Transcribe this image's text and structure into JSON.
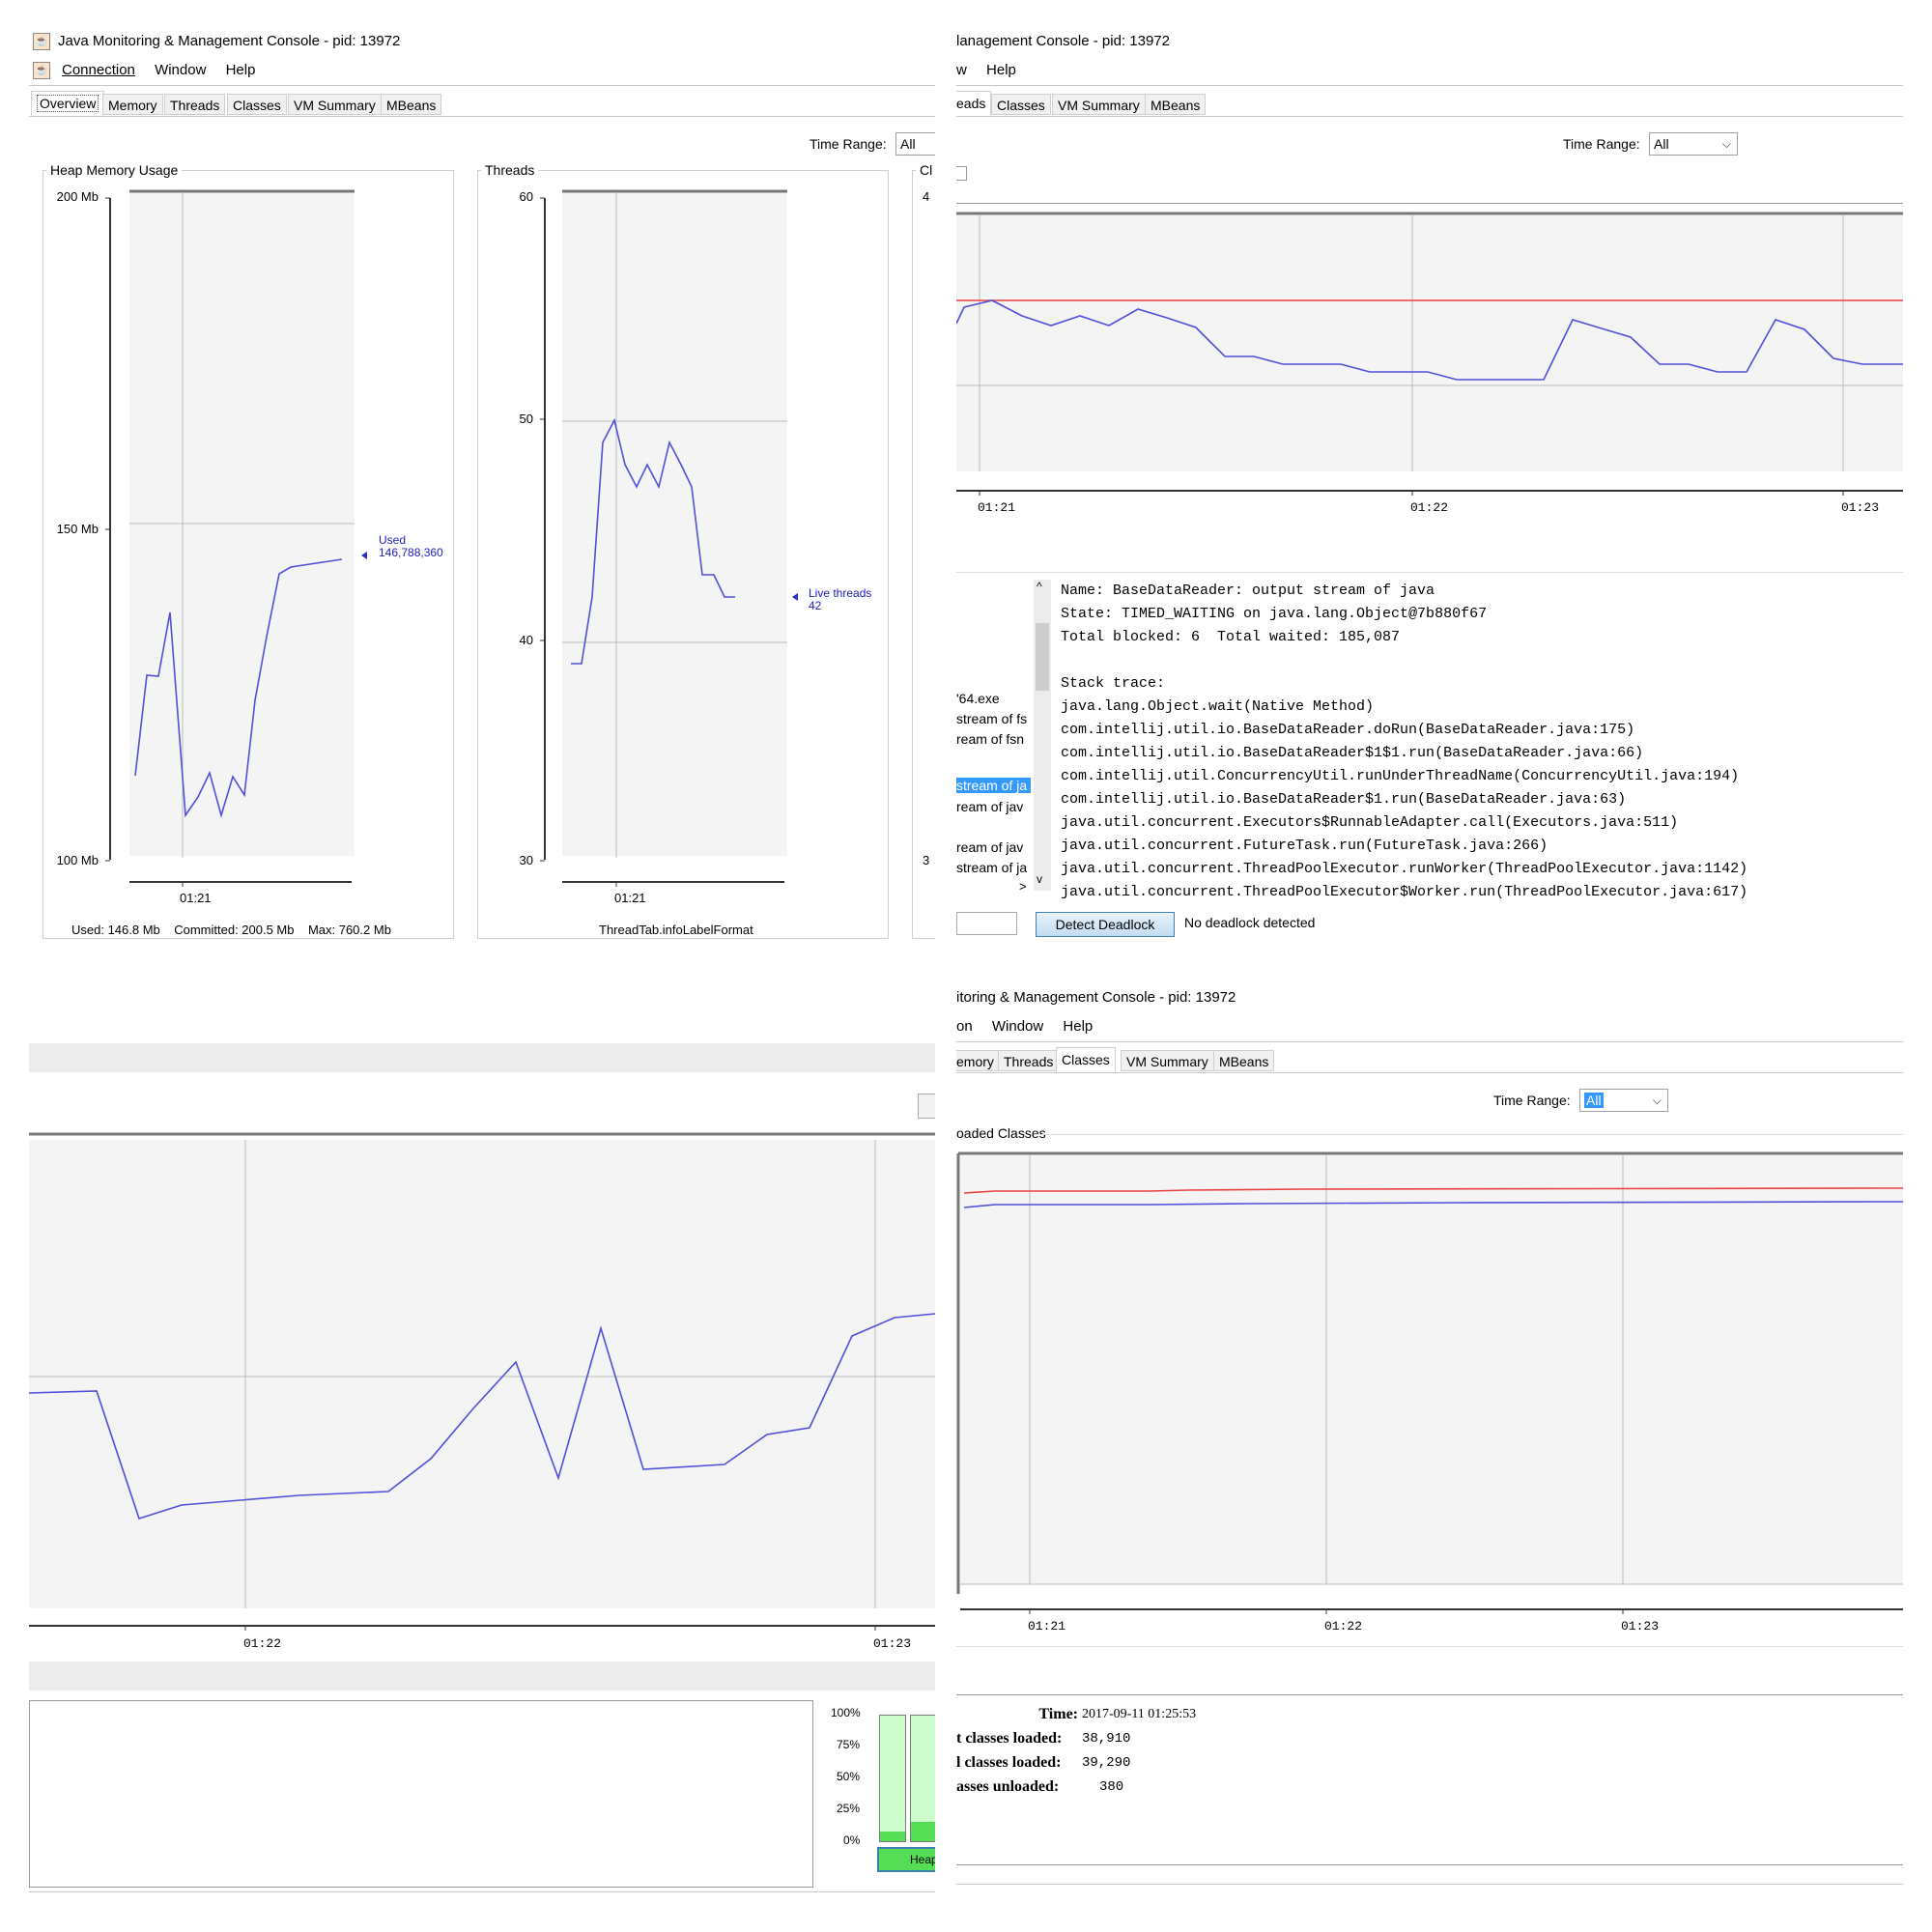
{
  "q1": {
    "window_title": "Java Monitoring & Management Console - pid: 13972",
    "menu": [
      "Connection",
      "Window",
      "Help"
    ],
    "tabs": [
      "Overview",
      "Memory",
      "Threads",
      "Classes",
      "VM Summary",
      "MBeans"
    ],
    "time_range_label": "Time Range:",
    "time_range_value": "All",
    "heap_panel": {
      "title": "Heap Memory Usage",
      "y_ticks": [
        "200 Mb",
        "150 Mb",
        "100 Mb"
      ],
      "x_tick": "01:21",
      "marker_label": "Used",
      "marker_value": "146,788,360",
      "footer": "Used: 146.8 Mb    Committed: 200.5 Mb    Max: 760.2 Mb"
    },
    "threads_panel": {
      "title": "Threads",
      "y_ticks": [
        "60",
        "50",
        "40",
        "30"
      ],
      "x_tick": "01:21",
      "marker_label": "Live threads",
      "marker_value": "42",
      "footer": "ThreadTab.infoLabelFormat"
    },
    "classes_panel": {
      "title": "Cl",
      "y_ticks": [
        "4",
        "3"
      ]
    }
  },
  "q2": {
    "window_title": "lanagement Console - pid: 13972",
    "menu": [
      "w",
      "Help"
    ],
    "tabs": [
      "eads",
      "Classes",
      "VM Summary",
      "MBeans"
    ],
    "time_range_label": "Time Range:",
    "time_range_value": "All",
    "x_ticks": [
      "01:21",
      "01:22",
      "01:23"
    ],
    "thread_list": [
      "'64.exe",
      "stream of fs",
      "ream of fsn",
      "stream of ja",
      "ream of jav",
      "ream of jav",
      "stream of ja"
    ],
    "details": {
      "name_line": "Name: BaseDataReader: output stream of java",
      "state_line": "State: TIMED_WAITING on java.lang.Object@7b880f67",
      "blocked_line": "Total blocked: 6  Total waited: 185,087",
      "stack_label": "Stack trace:",
      "stack": [
        "java.lang.Object.wait(Native Method)",
        "com.intellij.util.io.BaseDataReader.doRun(BaseDataReader.java:175)",
        "com.intellij.util.io.BaseDataReader$1$1.run(BaseDataReader.java:66)",
        "com.intellij.util.ConcurrencyUtil.runUnderThreadName(ConcurrencyUtil.java:194)",
        "com.intellij.util.io.BaseDataReader$1.run(BaseDataReader.java:63)",
        "java.util.concurrent.Executors$RunnableAdapter.call(Executors.java:511)",
        "java.util.concurrent.FutureTask.run(FutureTask.java:266)",
        "java.util.concurrent.ThreadPoolExecutor.runWorker(ThreadPoolExecutor.java:1142)",
        "java.util.concurrent.ThreadPoolExecutor$Worker.run(ThreadPoolExecutor.java:617)"
      ]
    },
    "detect_button": "Detect Deadlock",
    "deadlock_status": "No deadlock detected"
  },
  "q3": {
    "x_ticks": [
      "01:22",
      "01:23"
    ],
    "bar_ticks": [
      "100%",
      "75%",
      "50%",
      "25%",
      "0%"
    ],
    "bar_label": "Heap"
  },
  "q4": {
    "window_title": "itoring & Management Console - pid: 13972",
    "menu": [
      "on",
      "Window",
      "Help"
    ],
    "tabs": [
      "emory",
      "Threads",
      "Classes",
      "VM Summary",
      "MBeans"
    ],
    "time_range_label": "Time Range:",
    "time_range_value": "All",
    "chart_title": "oaded Classes",
    "x_ticks": [
      "01:21",
      "01:22",
      "01:23"
    ],
    "stats": [
      {
        "label": "Time:",
        "value": "2017-09-11 01:25:53"
      },
      {
        "label": "t classes loaded:",
        "value": "38,910"
      },
      {
        "label": "l classes loaded:",
        "value": "39,290"
      },
      {
        "label": "asses unloaded:",
        "value": "380"
      }
    ]
  },
  "colors": {
    "line_blue": "#4f4fd9",
    "line_red": "#e84040",
    "heap_green": "#55dd55"
  },
  "chart_data": [
    {
      "type": "line",
      "title": "Heap Memory Usage",
      "ylim": [
        100,
        200
      ],
      "series": [
        {
          "name": "Used",
          "values": [
            113,
            128,
            128,
            138,
            107,
            111,
            116,
            107,
            116,
            110,
            125,
            135,
            145,
            146,
            146.8
          ]
        }
      ]
    },
    {
      "type": "line",
      "title": "Threads",
      "ylim": [
        30,
        60
      ],
      "series": [
        {
          "name": "Live threads",
          "values": [
            39,
            39,
            42,
            49,
            50,
            48,
            47,
            48,
            47,
            49,
            48,
            47,
            43,
            43,
            42,
            42
          ]
        }
      ]
    }
  ]
}
